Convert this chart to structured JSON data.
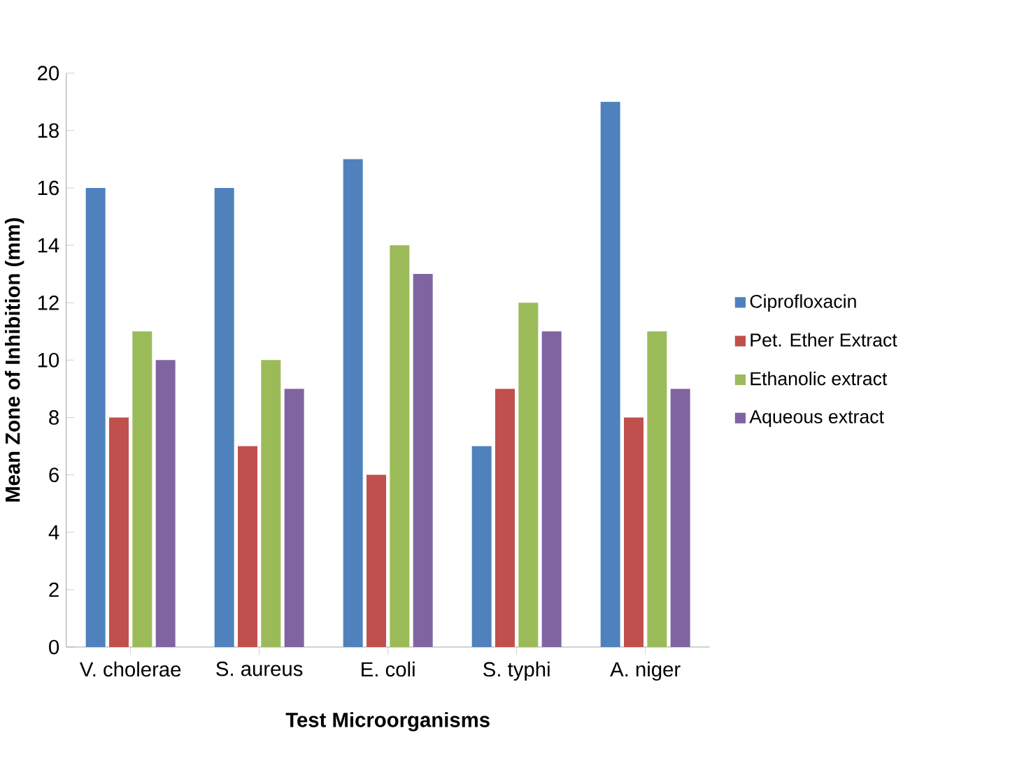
{
  "chart_data": {
    "type": "bar",
    "xlabel": "Test Microorganisms",
    "ylabel": "Mean Zone of Inhibition (mm)",
    "categories": [
      "V. cholerae",
      "S. aureus",
      "E. coli",
      "S. typhi",
      "A. niger"
    ],
    "series": [
      {
        "name": "Ciprofloxacin",
        "color": "#4f81bd",
        "values": [
          16,
          16,
          17,
          7,
          19
        ]
      },
      {
        "name": "Pet. Ether Extract",
        "color": "#c0504d",
        "values": [
          8,
          7,
          6,
          9,
          8
        ]
      },
      {
        "name": "Ethanolic extract",
        "color": "#9bbb59",
        "values": [
          11,
          10,
          14,
          12,
          11
        ]
      },
      {
        "name": "Aqueous extract",
        "color": "#8064a2",
        "values": [
          10,
          9,
          13,
          11,
          9
        ]
      }
    ],
    "ylim": [
      0,
      20
    ],
    "yticks": [
      0,
      2,
      4,
      6,
      8,
      10,
      12,
      14,
      16,
      18,
      20
    ],
    "legend": "right"
  }
}
